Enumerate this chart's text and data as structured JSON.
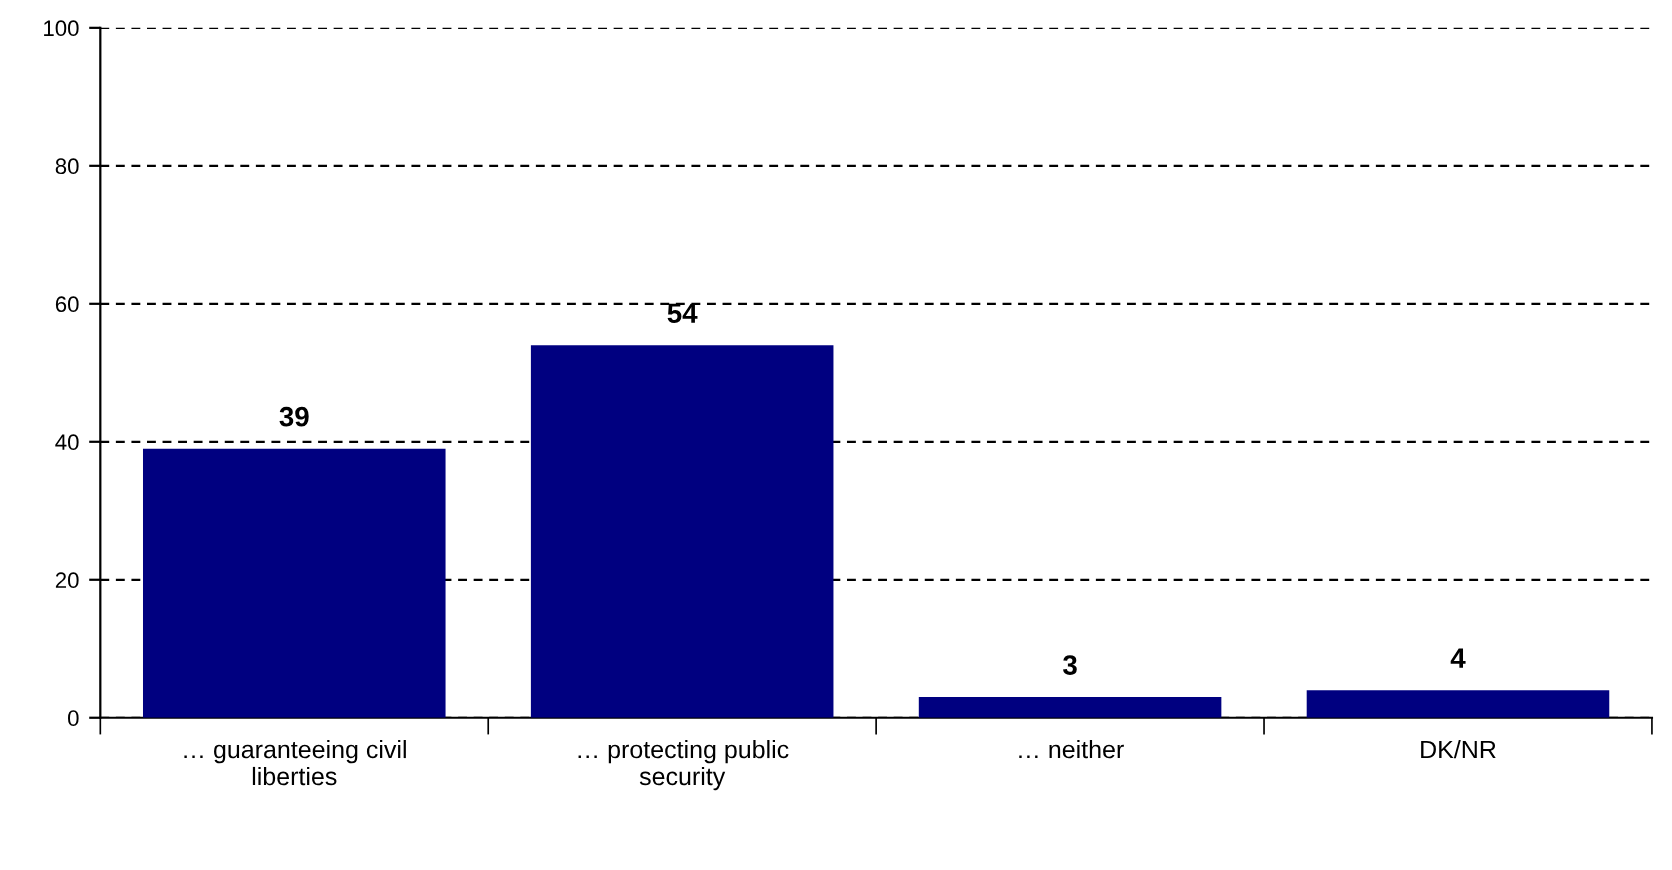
{
  "chart_data": {
    "type": "bar",
    "categories": [
      "… guaranteeing civil\nliberties",
      "… protecting public\nsecurity",
      "… neither",
      "DK/NR"
    ],
    "values": [
      39,
      54,
      3,
      4
    ],
    "color": "#000080",
    "ylim": [
      0,
      100
    ],
    "yticks": [
      0,
      20,
      40,
      60,
      80,
      100
    ],
    "grid": "y",
    "data_labels": true
  }
}
